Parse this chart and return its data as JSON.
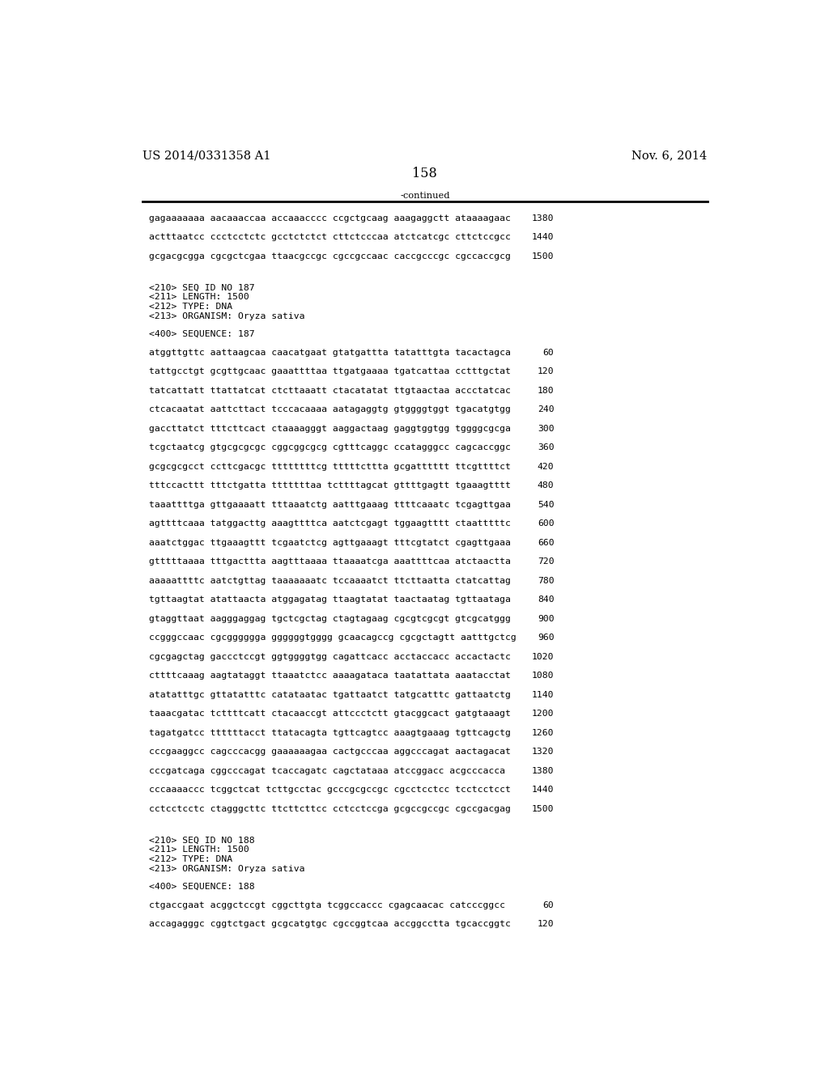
{
  "left_header": "US 2014/0331358 A1",
  "right_header": "Nov. 6, 2014",
  "page_number": "158",
  "continued_text": "-continued",
  "background_color": "#ffffff",
  "text_color": "#000000",
  "font_size_header": 10.5,
  "font_size_body": 8.2,
  "font_size_page": 11.5,
  "lines_before_rule": [
    [
      "gagaaaaaaa aacaaaccaa accaaacccc ccgctgcaag aaagaggctt ataaaagaac",
      "1380"
    ],
    [
      "actttaatcc ccctcctctc gcctctctct cttctcccaa atctcatcgc cttctccgcc",
      "1440"
    ],
    [
      "gcgacgcgga cgcgctcgaa ttaacgccgc cgccgccaac caccgcccgc cgccaccgcg",
      "1500"
    ]
  ],
  "meta_lines_187": [
    "<210> SEQ ID NO 187",
    "<211> LENGTH: 1500",
    "<212> TYPE: DNA",
    "<213> ORGANISM: Oryza sativa"
  ],
  "seq_header_187": "<400> SEQUENCE: 187",
  "seq_lines_187": [
    [
      "atggttgttc aattaagcaa caacatgaat gtatgattta tatatttgta tacactagca",
      "60"
    ],
    [
      "tattgcctgt gcgttgcaac gaaattttaa ttgatgaaaa tgatcattaa cctttgctat",
      "120"
    ],
    [
      "tatcattatt ttattatcat ctcttaaatt ctacatatat ttgtaactaa accctatcac",
      "180"
    ],
    [
      "ctcacaatat aattcttact tcccacaaaa aatagaggtg gtggggtggt tgacatgtgg",
      "240"
    ],
    [
      "gaccttatct tttcttcact ctaaaagggt aaggactaag gaggtggtgg tggggcgcga",
      "300"
    ],
    [
      "tcgctaatcg gtgcgcgcgc cggcggcgcg cgtttcaggc ccatagggcc cagcaccggc",
      "360"
    ],
    [
      "gcgcgcgcct ccttcgacgc ttttttttcg tttttcttta gcgatttttt ttcgttttct",
      "420"
    ],
    [
      "tttccacttt tttctgatta tttttttaa tcttttagcat gttttgagtt tgaaagtttt",
      "480"
    ],
    [
      "taaattttga gttgaaaatt tttaaatctg aatttgaaag ttttcaaatc tcgagttgaa",
      "540"
    ],
    [
      "agttttcaaa tatggacttg aaagttttca aatctcgagt tggaagtttt ctaatttttc",
      "600"
    ],
    [
      "aaatctggac ttgaaagttt tcgaatctcg agttgaaagt tttcgtatct cgagttgaaa",
      "660"
    ],
    [
      "gtttttaaaa tttgacttta aagtttaaaa ttaaaatcga aaattttcaa atctaactta",
      "720"
    ],
    [
      "aaaaattttc aatctgttag taaaaaaatc tccaaaatct ttcttaatta ctatcattag",
      "780"
    ],
    [
      "tgttaagtat atattaacta atggagatag ttaagtatat taactaatag tgttaataga",
      "840"
    ],
    [
      "gtaggttaat aagggaggag tgctcgctag ctagtagaag cgcgtcgcgt gtcgcatggg",
      "900"
    ],
    [
      "ccgggccaac cgcgggggga ggggggtgggg gcaacagccg cgcgctagtt aatttgctcg",
      "960"
    ],
    [
      "cgcgagctag gaccctccgt ggtggggtgg cagattcacc acctaccacc accactactc",
      "1020"
    ],
    [
      "cttttcaaag aagtataggt ttaaatctcc aaaagataca taatattata aaatacctat",
      "1080"
    ],
    [
      "atatatttgc gttatatttc catataatac tgattaatct tatgcatttc gattaatctg",
      "1140"
    ],
    [
      "taaacgatac tcttttcatt ctacaaccgt attccctctt gtacggcact gatgtaaagt",
      "1200"
    ],
    [
      "tagatgatcc ttttttacct ttatacagta tgttcagtcc aaagtgaaag tgttcagctg",
      "1260"
    ],
    [
      "cccgaaggcc cagcccacgg gaaaaaagaa cactgcccaa aggcccagat aactagacat",
      "1320"
    ],
    [
      "cccgatcaga cggcccagat tcaccagatc cagctataaa atccggacc acgcccacca",
      "1380"
    ],
    [
      "cccaaaaccc tcggctcat tcttgcctac gcccgcgccgc cgcctcctcc tcctcctcct",
      "1440"
    ],
    [
      "cctcctcctc ctagggcttc ttcttcttcc cctcctccga gcgccgccgc cgccgacgag",
      "1500"
    ]
  ],
  "meta_lines_188": [
    "<210> SEQ ID NO 188",
    "<211> LENGTH: 1500",
    "<212> TYPE: DNA",
    "<213> ORGANISM: Oryza sativa"
  ],
  "seq_header_188": "<400> SEQUENCE: 188",
  "seq_lines_188": [
    [
      "ctgaccgaat acggctccgt cggcttgta tcggccaccc cgagcaacac catcccggcc",
      "60"
    ],
    [
      "accagagggc cggtctgact gcgcatgtgc cgccggtcaa accggcctta tgcaccggtc",
      "120"
    ]
  ]
}
